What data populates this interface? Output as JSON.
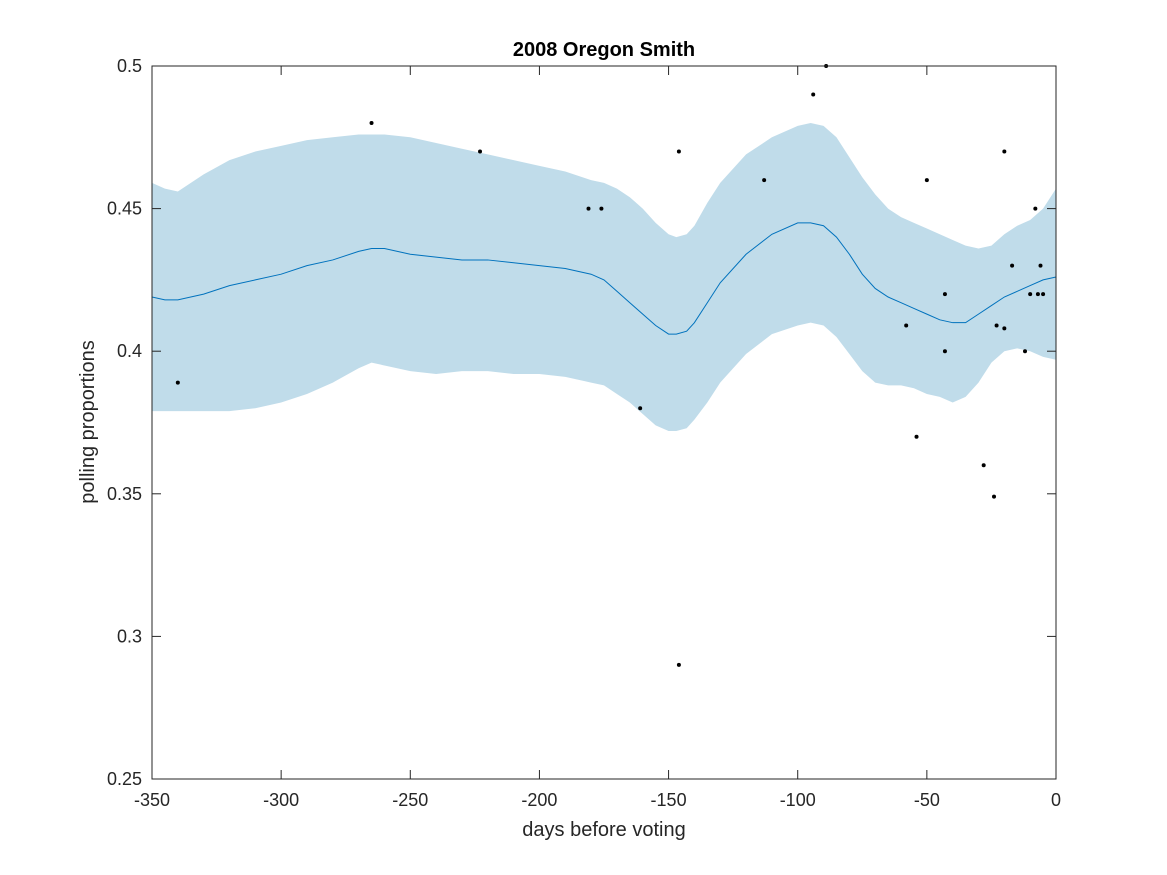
{
  "chart_data": {
    "type": "line",
    "title": "2008 Oregon Smith",
    "xlabel": "days before voting",
    "ylabel": "polling proportions",
    "xlim": [
      -350,
      0
    ],
    "ylim": [
      0.25,
      0.5
    ],
    "xticks": [
      -350,
      -300,
      -250,
      -200,
      -150,
      -100,
      -50,
      0
    ],
    "yticks": [
      0.25,
      0.3,
      0.35,
      0.4,
      0.45,
      0.5
    ],
    "xtick_labels": [
      "-350",
      "-300",
      "-250",
      "-200",
      "-150",
      "-100",
      "-50",
      "0"
    ],
    "ytick_labels": [
      "0.25",
      "0.3",
      "0.35",
      "0.4",
      "0.45",
      "0.5"
    ],
    "grid": false,
    "colors": {
      "line": "#0072bd",
      "band": "#c0dcea",
      "points": "#000000",
      "axes": "#262626"
    },
    "band": {
      "x": [
        -350,
        -345,
        -340,
        -330,
        -320,
        -310,
        -300,
        -290,
        -280,
        -270,
        -265,
        -260,
        -250,
        -240,
        -230,
        -220,
        -210,
        -200,
        -190,
        -180,
        -175,
        -170,
        -165,
        -160,
        -155,
        -150,
        -147,
        -143,
        -140,
        -135,
        -130,
        -120,
        -110,
        -100,
        -95,
        -90,
        -85,
        -80,
        -75,
        -70,
        -65,
        -60,
        -55,
        -50,
        -45,
        -40,
        -35,
        -30,
        -25,
        -20,
        -15,
        -10,
        -5,
        0
      ],
      "upper": [
        0.459,
        0.457,
        0.456,
        0.462,
        0.467,
        0.47,
        0.472,
        0.474,
        0.475,
        0.476,
        0.476,
        0.476,
        0.475,
        0.473,
        0.471,
        0.469,
        0.467,
        0.465,
        0.463,
        0.46,
        0.459,
        0.457,
        0.454,
        0.45,
        0.445,
        0.441,
        0.44,
        0.441,
        0.444,
        0.452,
        0.459,
        0.469,
        0.475,
        0.479,
        0.48,
        0.479,
        0.475,
        0.468,
        0.461,
        0.455,
        0.45,
        0.447,
        0.445,
        0.443,
        0.441,
        0.439,
        0.437,
        0.436,
        0.437,
        0.441,
        0.444,
        0.446,
        0.45,
        0.457
      ],
      "lower": [
        0.379,
        0.379,
        0.379,
        0.379,
        0.379,
        0.38,
        0.382,
        0.385,
        0.389,
        0.394,
        0.396,
        0.395,
        0.393,
        0.392,
        0.393,
        0.393,
        0.392,
        0.392,
        0.391,
        0.389,
        0.388,
        0.385,
        0.382,
        0.378,
        0.374,
        0.372,
        0.372,
        0.373,
        0.376,
        0.382,
        0.389,
        0.399,
        0.406,
        0.409,
        0.41,
        0.409,
        0.405,
        0.399,
        0.393,
        0.389,
        0.388,
        0.388,
        0.387,
        0.385,
        0.384,
        0.382,
        0.384,
        0.389,
        0.396,
        0.4,
        0.401,
        0.4,
        0.398,
        0.397
      ]
    },
    "series": [
      {
        "x": [
          -350,
          -345,
          -340,
          -330,
          -320,
          -310,
          -300,
          -290,
          -280,
          -270,
          -265,
          -260,
          -250,
          -240,
          -230,
          -220,
          -210,
          -200,
          -190,
          -180,
          -175,
          -170,
          -165,
          -160,
          -155,
          -150,
          -147,
          -143,
          -140,
          -135,
          -130,
          -120,
          -110,
          -100,
          -95,
          -90,
          -85,
          -80,
          -75,
          -70,
          -65,
          -60,
          -55,
          -50,
          -45,
          -40,
          -35,
          -30,
          -25,
          -20,
          -15,
          -10,
          -5,
          0
        ],
        "values": [
          0.419,
          0.418,
          0.418,
          0.42,
          0.423,
          0.425,
          0.427,
          0.43,
          0.432,
          0.435,
          0.436,
          0.436,
          0.434,
          0.433,
          0.432,
          0.432,
          0.431,
          0.43,
          0.429,
          0.427,
          0.425,
          0.421,
          0.417,
          0.413,
          0.409,
          0.406,
          0.406,
          0.407,
          0.41,
          0.417,
          0.424,
          0.434,
          0.441,
          0.445,
          0.445,
          0.444,
          0.44,
          0.434,
          0.427,
          0.422,
          0.419,
          0.417,
          0.415,
          0.413,
          0.411,
          0.41,
          0.41,
          0.413,
          0.416,
          0.419,
          0.421,
          0.423,
          0.425,
          0.426
        ]
      }
    ],
    "points": {
      "x": [
        -340,
        -265,
        -223,
        -181,
        -176,
        -161,
        -146,
        -146,
        -113,
        -94,
        -89,
        -58,
        -54,
        -50,
        -43,
        -43,
        -28,
        -24,
        -23,
        -20,
        -20,
        -17,
        -12,
        -10,
        -8,
        -7,
        -6,
        -5
      ],
      "y": [
        0.389,
        0.48,
        0.47,
        0.45,
        0.45,
        0.38,
        0.47,
        0.29,
        0.46,
        0.49,
        0.5,
        0.409,
        0.37,
        0.46,
        0.42,
        0.4,
        0.36,
        0.349,
        0.409,
        0.408,
        0.47,
        0.43,
        0.4,
        0.42,
        0.45,
        0.42,
        0.43,
        0.42
      ]
    }
  }
}
